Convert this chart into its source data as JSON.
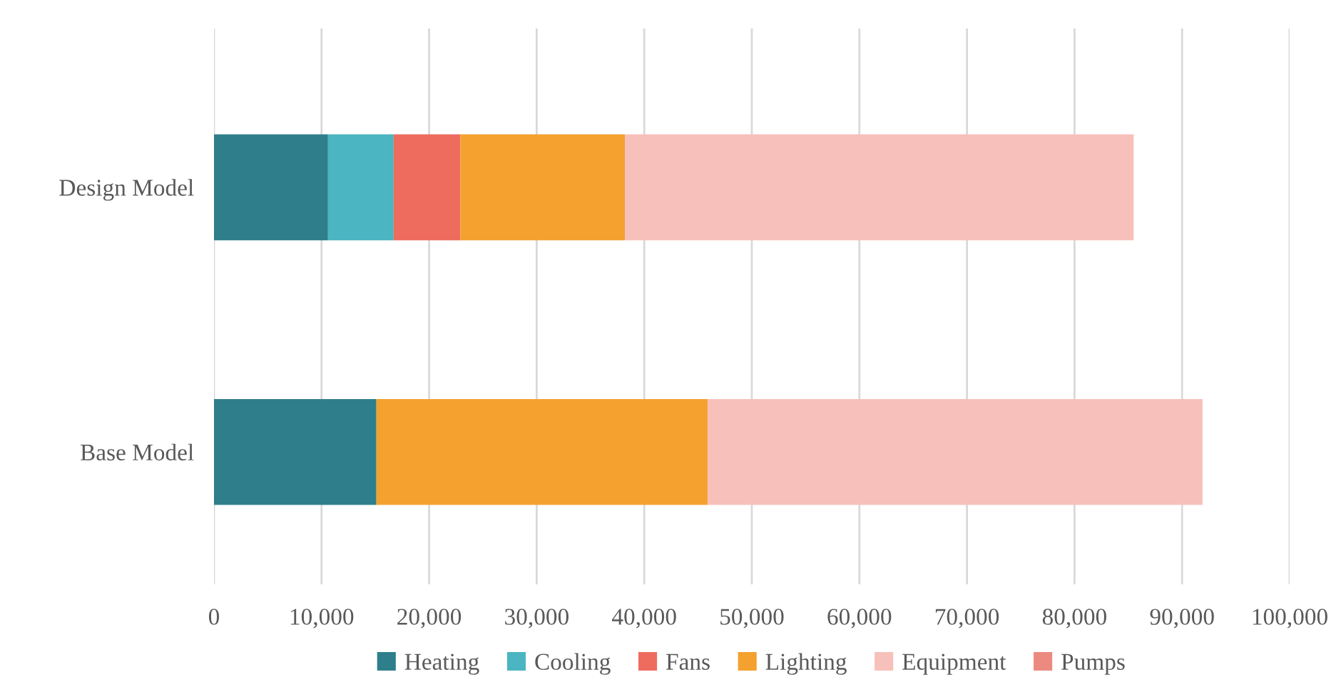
{
  "chart_data": {
    "type": "bar",
    "orientation": "horizontal",
    "stacked": true,
    "categories": [
      "Design Model",
      "Base Model"
    ],
    "series": [
      {
        "name": "Heating",
        "color": "#2e7f8b",
        "values": [
          10600,
          15100
        ]
      },
      {
        "name": "Cooling",
        "color": "#4bb5c1",
        "values": [
          6100,
          0
        ]
      },
      {
        "name": "Fans",
        "color": "#ee6c5e",
        "values": [
          6200,
          0
        ]
      },
      {
        "name": "Lighting",
        "color": "#f4a12f",
        "values": [
          15300,
          30800
        ]
      },
      {
        "name": "Equipment",
        "color": "#f7c0bb",
        "values": [
          47300,
          46000
        ]
      },
      {
        "name": "Pumps",
        "color": "#ec8a80",
        "values": [
          0,
          0
        ]
      }
    ],
    "xlim": [
      0,
      100000
    ],
    "xticks": [
      0,
      {
        "value": 10000,
        "label": "10,000"
      },
      {
        "value": 20000,
        "label": "20,000"
      },
      {
        "value": 30000,
        "label": "30,000"
      },
      {
        "value": 40000,
        "label": "40,000"
      },
      {
        "value": 50000,
        "label": "50,000"
      },
      {
        "value": 60000,
        "label": "60,000"
      },
      {
        "value": 70000,
        "label": "70,000"
      },
      {
        "value": 80000,
        "label": "80,000"
      },
      {
        "value": 90000,
        "label": "90,000"
      },
      {
        "value": 100000,
        "label": "100,000"
      }
    ],
    "grid": "x",
    "legend": "bottom"
  }
}
